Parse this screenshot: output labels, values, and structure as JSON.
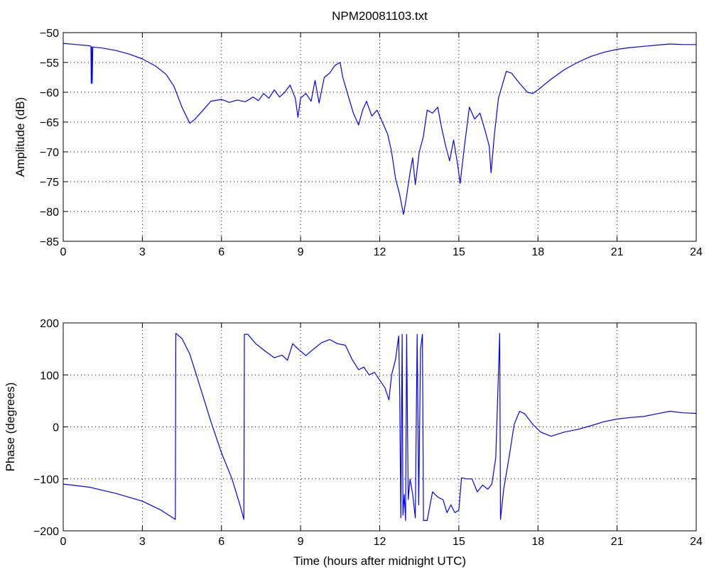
{
  "title": "NPM20081103.txt",
  "chart_data": [
    {
      "type": "line",
      "title": "NPM20081103.txt",
      "xlabel": "",
      "ylabel": "Amplitude (dB)",
      "xlim": [
        0,
        24
      ],
      "ylim": [
        -85,
        -50
      ],
      "xticks": [
        0,
        3,
        6,
        9,
        12,
        15,
        18,
        21,
        24
      ],
      "yticks": [
        -50,
        -55,
        -60,
        -65,
        -70,
        -75,
        -80,
        -85
      ],
      "grid": true,
      "series": [
        {
          "color": "#0000ff",
          "points": [
            [
              0,
              -51.8
            ],
            [
              0.5,
              -52.0
            ],
            [
              1.0,
              -52.2
            ],
            [
              1.05,
              -52.3
            ],
            [
              1.06,
              -58.5
            ],
            [
              1.08,
              -52.4
            ],
            [
              1.1,
              -58.5
            ],
            [
              1.12,
              -52.4
            ],
            [
              1.5,
              -52.6
            ],
            [
              2.0,
              -53.0
            ],
            [
              2.5,
              -53.6
            ],
            [
              3.0,
              -54.4
            ],
            [
              3.5,
              -55.6
            ],
            [
              3.9,
              -57.0
            ],
            [
              4.2,
              -59.0
            ],
            [
              4.5,
              -62.5
            ],
            [
              4.8,
              -65.2
            ],
            [
              5.0,
              -64.5
            ],
            [
              5.3,
              -63.0
            ],
            [
              5.6,
              -61.5
            ],
            [
              6.0,
              -61.2
            ],
            [
              6.3,
              -61.7
            ],
            [
              6.6,
              -61.3
            ],
            [
              6.9,
              -61.6
            ],
            [
              7.2,
              -60.8
            ],
            [
              7.4,
              -61.4
            ],
            [
              7.6,
              -60.2
            ],
            [
              7.8,
              -61.0
            ],
            [
              8.0,
              -59.6
            ],
            [
              8.2,
              -60.8
            ],
            [
              8.4,
              -60.0
            ],
            [
              8.6,
              -58.8
            ],
            [
              8.8,
              -61.0
            ],
            [
              8.9,
              -64.2
            ],
            [
              9.0,
              -61.0
            ],
            [
              9.2,
              -60.2
            ],
            [
              9.4,
              -61.5
            ],
            [
              9.55,
              -58.0
            ],
            [
              9.7,
              -61.8
            ],
            [
              9.9,
              -57.5
            ],
            [
              10.1,
              -56.8
            ],
            [
              10.3,
              -55.5
            ],
            [
              10.5,
              -55.0
            ],
            [
              10.6,
              -57.5
            ],
            [
              10.8,
              -60.5
            ],
            [
              11.0,
              -63.5
            ],
            [
              11.2,
              -65.5
            ],
            [
              11.35,
              -63.0
            ],
            [
              11.5,
              -61.5
            ],
            [
              11.7,
              -64.0
            ],
            [
              11.9,
              -63.0
            ],
            [
              12.1,
              -65.0
            ],
            [
              12.3,
              -67.0
            ],
            [
              12.45,
              -70.0
            ],
            [
              12.6,
              -74.5
            ],
            [
              12.75,
              -77.0
            ],
            [
              12.9,
              -80.5
            ],
            [
              13.0,
              -78.0
            ],
            [
              13.15,
              -73.5
            ],
            [
              13.25,
              -71.0
            ],
            [
              13.35,
              -75.5
            ],
            [
              13.5,
              -70.0
            ],
            [
              13.65,
              -67.5
            ],
            [
              13.8,
              -63.0
            ],
            [
              14.0,
              -63.5
            ],
            [
              14.2,
              -62.5
            ],
            [
              14.35,
              -66.0
            ],
            [
              14.5,
              -69.0
            ],
            [
              14.65,
              -71.5
            ],
            [
              14.8,
              -68.0
            ],
            [
              14.95,
              -72.0
            ],
            [
              15.05,
              -75.3
            ],
            [
              15.2,
              -69.5
            ],
            [
              15.4,
              -62.5
            ],
            [
              15.6,
              -64.5
            ],
            [
              15.8,
              -63.5
            ],
            [
              16.0,
              -66.5
            ],
            [
              16.15,
              -69.0
            ],
            [
              16.22,
              -73.5
            ],
            [
              16.35,
              -67.0
            ],
            [
              16.5,
              -61.0
            ],
            [
              16.8,
              -56.5
            ],
            [
              17.0,
              -56.8
            ],
            [
              17.3,
              -58.5
            ],
            [
              17.6,
              -60.0
            ],
            [
              17.8,
              -60.2
            ],
            [
              18.0,
              -59.6
            ],
            [
              18.5,
              -57.8
            ],
            [
              19.0,
              -56.2
            ],
            [
              19.5,
              -55.0
            ],
            [
              20.0,
              -54.0
            ],
            [
              20.5,
              -53.3
            ],
            [
              21.0,
              -52.8
            ],
            [
              21.5,
              -52.5
            ],
            [
              22.0,
              -52.3
            ],
            [
              22.5,
              -52.1
            ],
            [
              23.0,
              -51.9
            ],
            [
              23.5,
              -52.0
            ],
            [
              24.0,
              -52.0
            ]
          ]
        }
      ]
    },
    {
      "type": "line",
      "title": "",
      "xlabel": "Time (hours after midnight UTC)",
      "ylabel": "Phase (degrees)",
      "xlim": [
        0,
        24
      ],
      "ylim": [
        -200,
        200
      ],
      "xticks": [
        0,
        3,
        6,
        9,
        12,
        15,
        18,
        21,
        24
      ],
      "yticks": [
        200,
        100,
        0,
        -100,
        -200
      ],
      "grid": true,
      "series": [
        {
          "color": "#0000ff",
          "points": [
            [
              0,
              -110
            ],
            [
              1.0,
              -116
            ],
            [
              2.0,
              -128
            ],
            [
              3.0,
              -143
            ],
            [
              3.7,
              -160
            ],
            [
              4.25,
              -178
            ],
            [
              4.27,
              180
            ],
            [
              4.5,
              170
            ],
            [
              4.8,
              140
            ],
            [
              5.2,
              75
            ],
            [
              5.6,
              10
            ],
            [
              6.0,
              -50
            ],
            [
              6.4,
              -100
            ],
            [
              6.7,
              -150
            ],
            [
              6.85,
              -178
            ],
            [
              6.87,
              178
            ],
            [
              7.0,
              178
            ],
            [
              7.3,
              160
            ],
            [
              7.6,
              148
            ],
            [
              8.0,
              133
            ],
            [
              8.3,
              138
            ],
            [
              8.5,
              128
            ],
            [
              8.7,
              160
            ],
            [
              8.9,
              150
            ],
            [
              9.2,
              137
            ],
            [
              9.5,
              150
            ],
            [
              9.8,
              162
            ],
            [
              10.1,
              168
            ],
            [
              10.4,
              160
            ],
            [
              10.7,
              157
            ],
            [
              10.95,
              130
            ],
            [
              11.2,
              110
            ],
            [
              11.4,
              115
            ],
            [
              11.6,
              100
            ],
            [
              11.8,
              105
            ],
            [
              12.0,
              90
            ],
            [
              12.2,
              75
            ],
            [
              12.35,
              52
            ],
            [
              12.45,
              100
            ],
            [
              12.6,
              130
            ],
            [
              12.72,
              175
            ],
            [
              12.76,
              60
            ],
            [
              12.8,
              -175
            ],
            [
              12.85,
              178
            ],
            [
              12.88,
              -170
            ],
            [
              12.93,
              -130
            ],
            [
              12.98,
              -180
            ],
            [
              13.02,
              178
            ],
            [
              13.08,
              -140
            ],
            [
              13.15,
              -100
            ],
            [
              13.25,
              -130
            ],
            [
              13.35,
              -175
            ],
            [
              13.42,
              178
            ],
            [
              13.48,
              -150
            ],
            [
              13.55,
              150
            ],
            [
              13.62,
              178
            ],
            [
              13.66,
              -180
            ],
            [
              13.8,
              -180
            ],
            [
              14.0,
              -125
            ],
            [
              14.2,
              -135
            ],
            [
              14.4,
              -140
            ],
            [
              14.55,
              -165
            ],
            [
              14.7,
              -150
            ],
            [
              14.85,
              -165
            ],
            [
              15.0,
              -160
            ],
            [
              15.1,
              -98
            ],
            [
              15.3,
              -100
            ],
            [
              15.5,
              -100
            ],
            [
              15.7,
              -125
            ],
            [
              15.9,
              -112
            ],
            [
              16.1,
              -120
            ],
            [
              16.25,
              -110
            ],
            [
              16.4,
              -60
            ],
            [
              16.55,
              180
            ],
            [
              16.58,
              -178
            ],
            [
              16.7,
              -120
            ],
            [
              16.9,
              -60
            ],
            [
              17.1,
              5
            ],
            [
              17.3,
              30
            ],
            [
              17.5,
              25
            ],
            [
              17.8,
              5
            ],
            [
              18.1,
              -10
            ],
            [
              18.5,
              -18
            ],
            [
              19.0,
              -10
            ],
            [
              19.5,
              -5
            ],
            [
              20.0,
              2
            ],
            [
              20.5,
              10
            ],
            [
              21.0,
              15
            ],
            [
              21.5,
              18
            ],
            [
              22.0,
              20
            ],
            [
              22.5,
              25
            ],
            [
              23.0,
              30
            ],
            [
              23.5,
              27
            ],
            [
              24.0,
              26
            ]
          ]
        }
      ]
    }
  ]
}
